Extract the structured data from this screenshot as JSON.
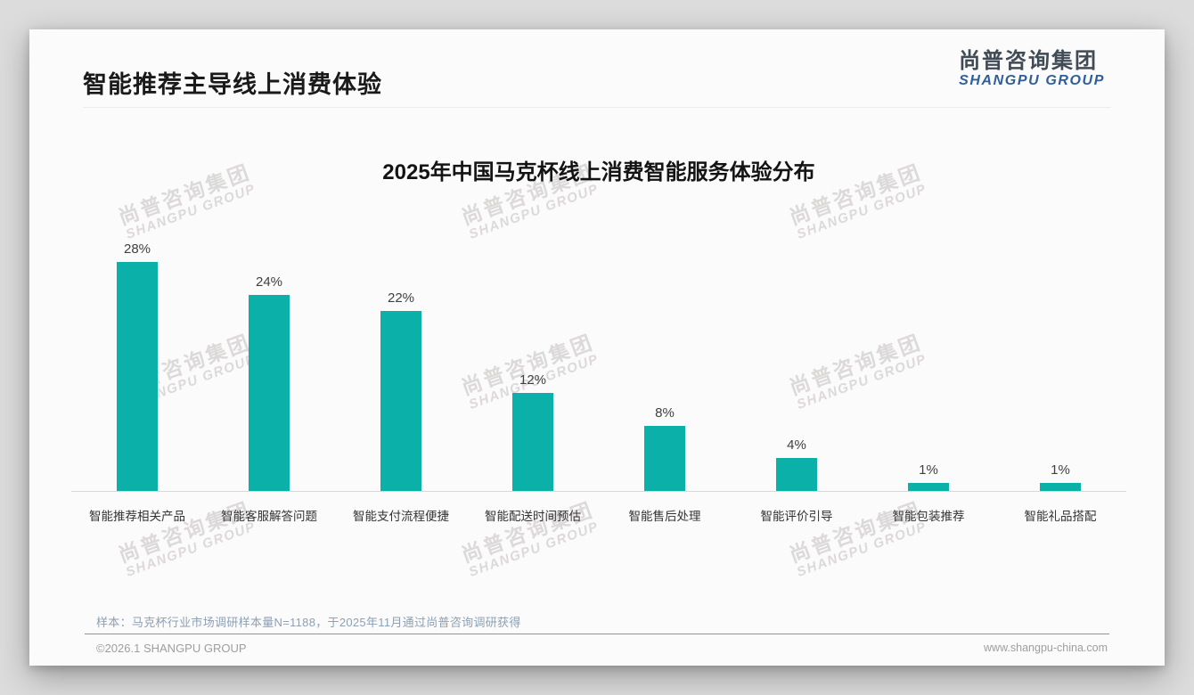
{
  "header": {
    "title": "智能推荐主导线上消费体验",
    "logo": {
      "chinese": "尚普咨询集团",
      "english": "SHANGPU GROUP"
    }
  },
  "chart_data": {
    "type": "bar",
    "title": "2025年中国马克杯线上消费智能服务体验分布",
    "categories": [
      "智能推荐相关产品",
      "智能客服解答问题",
      "智能支付流程便捷",
      "智能配送时间预估",
      "智能售后处理",
      "智能评价引导",
      "智能包装推荐",
      "智能礼品搭配"
    ],
    "values": [
      28,
      24,
      22,
      12,
      8,
      4,
      1,
      1
    ],
    "value_labels": [
      "28%",
      "24%",
      "22%",
      "12%",
      "8%",
      "4%",
      "1%",
      "1%"
    ],
    "unit": "%",
    "xlabel": "",
    "ylabel": "",
    "ylim": [
      0,
      30
    ],
    "grid": false,
    "legend": false,
    "bar_color": "#0bb1a8"
  },
  "watermark": {
    "line1": "尚普咨询集团",
    "line2": "SHANGPU GROUP"
  },
  "footnote": {
    "text": "样本：马克杯行业市场调研样本量N=1188，于2025年11月通过尚普咨询调研获得"
  },
  "footer": {
    "copyright": "©2026.1 SHANGPU GROUP",
    "website": "www.shangpu-china.com"
  },
  "colors": {
    "bar_teal": "#0bb1a8",
    "logo_blue": "#2e5f99",
    "logo_dark": "#414b56",
    "footnote_blue_gray": "#8da0b4",
    "footer_rule_blue": "#8496ab"
  }
}
